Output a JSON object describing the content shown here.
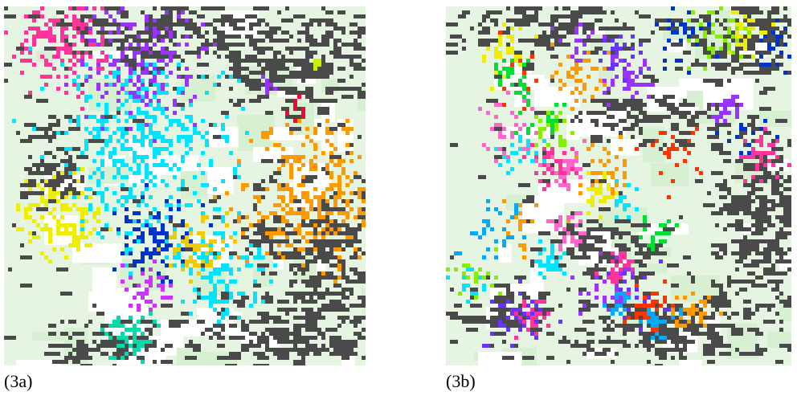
{
  "panels": [
    {
      "label": "(3a)"
    },
    {
      "label": "(3b)"
    }
  ]
}
